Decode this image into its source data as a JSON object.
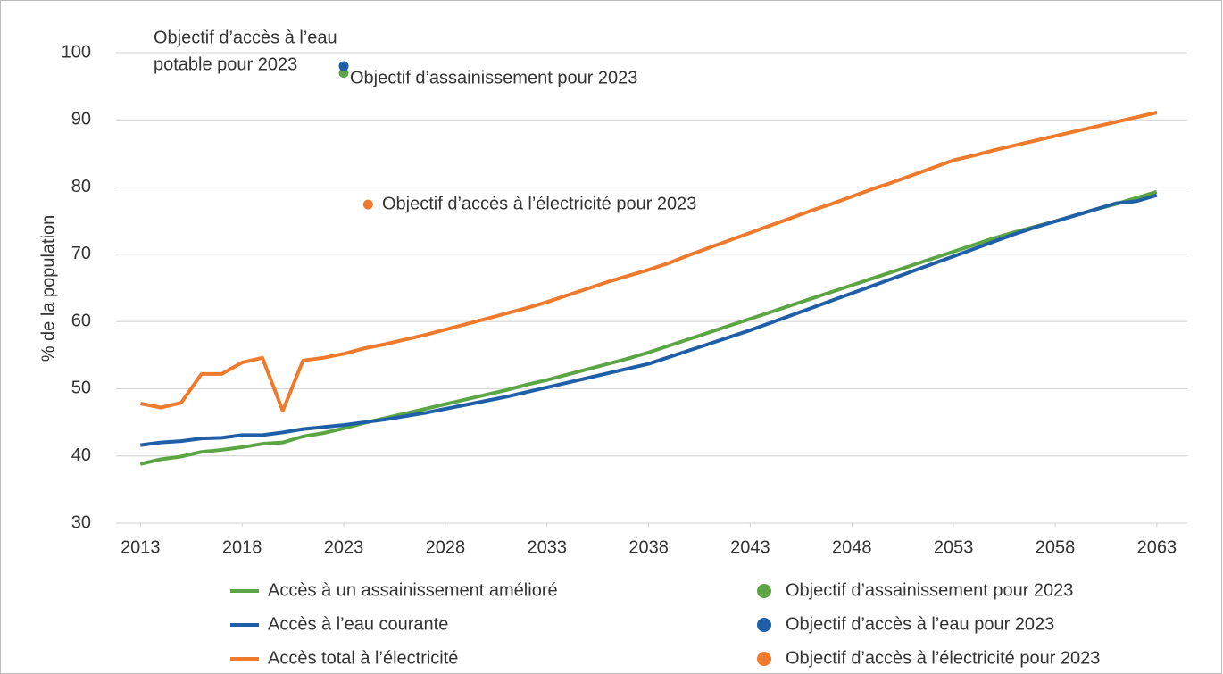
{
  "chart_data": {
    "type": "line",
    "y_label": "% de la population",
    "xlim": [
      2011.8,
      2064.5
    ],
    "ylim": [
      30,
      100
    ],
    "xticks": [
      2013,
      2018,
      2023,
      2028,
      2033,
      2038,
      2043,
      2048,
      2053,
      2058,
      2063
    ],
    "yticks": [
      30,
      40,
      50,
      60,
      70,
      80,
      90,
      100
    ],
    "grid": true,
    "x": [
      2013,
      2014,
      2015,
      2016,
      2017,
      2018,
      2019,
      2020,
      2021,
      2022,
      2023,
      2024,
      2025,
      2026,
      2027,
      2028,
      2029,
      2030,
      2031,
      2032,
      2033,
      2034,
      2035,
      2036,
      2037,
      2038,
      2039,
      2040,
      2041,
      2042,
      2043,
      2044,
      2045,
      2046,
      2047,
      2048,
      2049,
      2050,
      2051,
      2052,
      2053,
      2054,
      2055,
      2056,
      2057,
      2058,
      2059,
      2060,
      2061,
      2062,
      2063
    ],
    "series": [
      {
        "name": "Accès à un assainissement amélioré",
        "color": "#5ba544",
        "values": [
          38.8,
          39.5,
          39.9,
          40.6,
          40.9,
          41.3,
          41.8,
          42.0,
          42.9,
          43.4,
          44.1,
          44.9,
          45.6,
          46.3,
          47.0,
          47.7,
          48.4,
          49.1,
          49.8,
          50.6,
          51.3,
          52.1,
          52.9,
          53.7,
          54.5,
          55.4,
          56.4,
          57.4,
          58.4,
          59.4,
          60.4,
          61.4,
          62.4,
          63.4,
          64.4,
          65.4,
          66.4,
          67.4,
          68.4,
          69.4,
          70.4,
          71.4,
          72.4,
          73.3,
          74.1,
          74.9,
          75.8,
          76.7,
          77.5,
          78.4,
          79.3
        ]
      },
      {
        "name": "Accès à l’eau courante",
        "color": "#1f5fa8",
        "values": [
          41.6,
          42.0,
          42.2,
          42.6,
          42.7,
          43.1,
          43.1,
          43.5,
          44.0,
          44.3,
          44.6,
          45.0,
          45.4,
          45.9,
          46.4,
          47.0,
          47.6,
          48.2,
          48.8,
          49.5,
          50.2,
          50.9,
          51.6,
          52.3,
          53.0,
          53.7,
          54.7,
          55.7,
          56.7,
          57.7,
          58.7,
          59.8,
          60.9,
          62.0,
          63.1,
          64.2,
          65.3,
          66.4,
          67.5,
          68.6,
          69.7,
          70.8,
          71.9,
          73.0,
          74.0,
          74.9,
          75.8,
          76.7,
          77.6,
          77.9,
          78.8
        ]
      },
      {
        "name": "Accès total à l’électricité",
        "color": "#ef7a2c",
        "values": [
          47.8,
          47.2,
          47.9,
          52.2,
          52.2,
          53.9,
          54.6,
          46.7,
          54.2,
          54.6,
          55.2,
          56.0,
          56.6,
          57.3,
          58.0,
          58.8,
          59.6,
          60.4,
          61.2,
          62.0,
          62.9,
          63.9,
          64.9,
          65.9,
          66.8,
          67.7,
          68.7,
          69.9,
          71.0,
          72.1,
          73.2,
          74.3,
          75.4,
          76.5,
          77.5,
          78.6,
          79.7,
          80.7,
          81.8,
          82.9,
          84.0,
          84.7,
          85.5,
          86.2,
          86.9,
          87.6,
          88.3,
          89.0,
          89.7,
          90.4,
          91.1
        ]
      }
    ],
    "points": [
      {
        "name": "Objectif d’assainissement pour 2023",
        "color": "#5ba544",
        "x": 2023,
        "y": 97.0
      },
      {
        "name": "Objectif d’accès à l’eau pour 2023",
        "color": "#1f5fa8",
        "x": 2023,
        "y": 98.0
      },
      {
        "name": "Objectif d’accès à l’électricité pour 2023",
        "color": "#ef7a2c",
        "x": 2024.2,
        "y": 77.4
      }
    ],
    "annotations": [
      "Objectif d’accès à l’eau",
      "potable pour 2023",
      "Objectif d’assainissement pour 2023",
      "Objectif d’accès à l’électricité pour 2023"
    ]
  }
}
